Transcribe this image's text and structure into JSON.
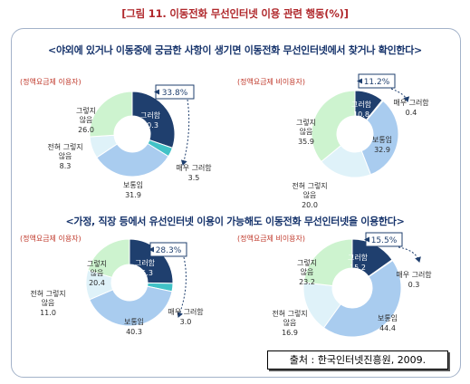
{
  "title": "[그림 11. 이동전화 무선인터넷 이용 관련 행동(%)]",
  "sections": [
    {
      "title": "<야외에 있거나 이동중에 궁금한 사항이 생기면 이동전화 무선인터넷에서 찾거나 확인한다>"
    },
    {
      "title": "<가정, 직장 등에서 유선인터넷 이용이 가능해도 이동전화 무선인터넷을 이용한다>"
    }
  ],
  "source": "출처 : 한국인터넷진흥원, 2009.",
  "colors": {
    "그렇다": "#1f3f6e",
    "매우 그러함": "#41c2c7",
    "보통임": "#a9ccef",
    "전혀 그렇지 않음": "#dff2f9",
    "그렇지 않음": "#cdf3cf",
    "label": "#c0392b",
    "highlight": "#1f3f6e"
  },
  "chart_data": [
    {
      "type": "pie",
      "subtitle": "(정액요금제 이용자)",
      "highlight": "33.8%",
      "categories": [
        "그렇다",
        "매우 그러함",
        "보통임",
        "전혀 그렇지 않음",
        "그렇지 않음"
      ],
      "labels": [
        "그러함",
        "매우 그러함",
        "보통임",
        "전혀 그렇지 않음",
        "그렇지 않음"
      ],
      "values": [
        30.3,
        3.5,
        31.9,
        8.3,
        26.0
      ]
    },
    {
      "type": "pie",
      "subtitle": "(정액요금제 비이용자)",
      "highlight": "11.2%",
      "categories": [
        "그렇다",
        "매우 그러함",
        "보통임",
        "전혀 그렇지 않음",
        "그렇지 않음"
      ],
      "labels": [
        "그러함",
        "매우 그러함",
        "보통임",
        "전혀 그렇지 않음",
        "그렇지 않음"
      ],
      "values": [
        10.8,
        0.4,
        32.9,
        20.0,
        35.9
      ]
    },
    {
      "type": "pie",
      "subtitle": "(정액요금제 이용자)",
      "highlight": "28.3%",
      "categories": [
        "그렇다",
        "매우 그러함",
        "보통임",
        "전혀 그렇지 않음",
        "그렇지 않음"
      ],
      "labels": [
        "그러함",
        "매우 그러함",
        "보통임",
        "전혀 그렇지 않음",
        "그렇지 않음"
      ],
      "values": [
        25.3,
        3.0,
        40.3,
        11.0,
        20.4
      ]
    },
    {
      "type": "pie",
      "subtitle": "(정액요금제 비이용자)",
      "highlight": "15.5%",
      "categories": [
        "그렇다",
        "매우 그러함",
        "보통임",
        "전혀 그렇지 않음",
        "그렇지 않음"
      ],
      "labels": [
        "그러함",
        "매우 그러함",
        "보통임",
        "전혀 그렇지 않음",
        "그렇지 않음"
      ],
      "values": [
        15.2,
        0.3,
        44.4,
        16.9,
        23.2
      ]
    }
  ]
}
